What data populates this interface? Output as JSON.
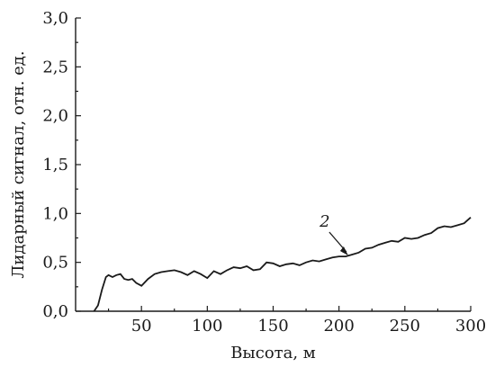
{
  "chart_data": {
    "type": "line",
    "xlabel": "Высота, м",
    "ylabel": "Лидарный сигнал, отн. ед.",
    "xlim": [
      0,
      300
    ],
    "ylim": [
      0,
      3
    ],
    "x_ticks": [
      50,
      100,
      150,
      200,
      250,
      300
    ],
    "x_tick_labels": [
      "50",
      "100",
      "150",
      "200",
      "250",
      "300"
    ],
    "y_ticks": [
      0,
      0.5,
      1,
      1.5,
      2,
      2.5,
      3
    ],
    "y_tick_labels": [
      "0,0",
      "0,5",
      "1,0",
      "1,5",
      "2,0",
      "2,5",
      "3,0"
    ],
    "grid": false,
    "legend": false,
    "series": [
      {
        "label": "2",
        "x": [
          14,
          17,
          20,
          23,
          25,
          28,
          31,
          34,
          37,
          40,
          43,
          46,
          50,
          55,
          60,
          65,
          70,
          75,
          80,
          85,
          90,
          95,
          100,
          105,
          110,
          115,
          120,
          125,
          130,
          135,
          140,
          145,
          150,
          155,
          160,
          165,
          170,
          175,
          180,
          185,
          190,
          195,
          200,
          205,
          210,
          215,
          220,
          225,
          230,
          235,
          240,
          245,
          250,
          255,
          260,
          265,
          270,
          275,
          280,
          285,
          290,
          295,
          300
        ],
        "values": [
          0.0,
          0.06,
          0.22,
          0.35,
          0.37,
          0.35,
          0.37,
          0.38,
          0.33,
          0.32,
          0.33,
          0.29,
          0.26,
          0.33,
          0.38,
          0.4,
          0.41,
          0.42,
          0.4,
          0.37,
          0.41,
          0.38,
          0.34,
          0.41,
          0.38,
          0.42,
          0.45,
          0.44,
          0.46,
          0.42,
          0.43,
          0.5,
          0.49,
          0.46,
          0.48,
          0.49,
          0.47,
          0.5,
          0.52,
          0.51,
          0.53,
          0.55,
          0.56,
          0.56,
          0.58,
          0.6,
          0.64,
          0.65,
          0.68,
          0.7,
          0.72,
          0.71,
          0.75,
          0.74,
          0.75,
          0.78,
          0.8,
          0.85,
          0.87,
          0.86,
          0.88,
          0.9,
          0.96
        ]
      }
    ],
    "annotations": [
      {
        "text": "2",
        "points_to": {
          "x": 207,
          "y": 0.57
        }
      }
    ]
  }
}
